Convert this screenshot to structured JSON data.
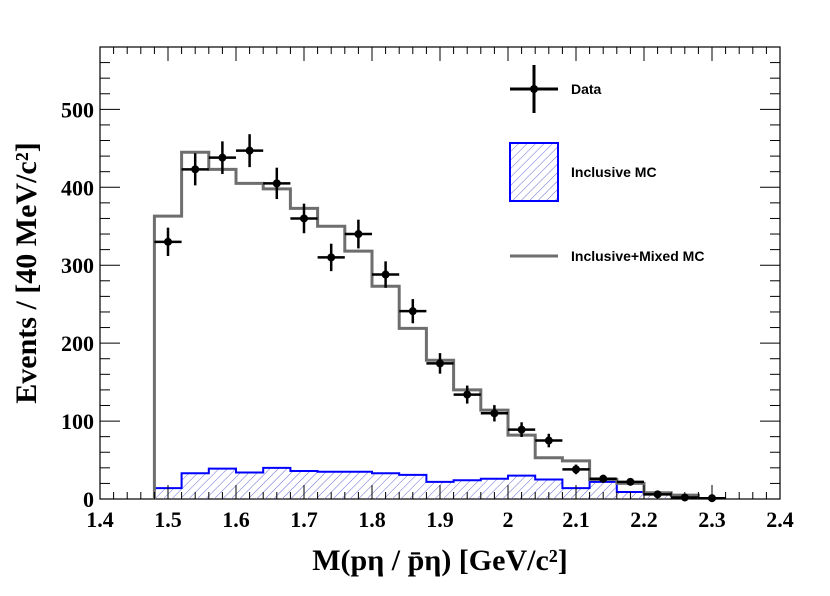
{
  "chart_data": {
    "type": "bar",
    "xlabel": "M(pη /  p̄η) [GeV/c²]",
    "ylabel": "Events / [40 MeV/c²]",
    "xlim": [
      1.4,
      2.4
    ],
    "ylim": [
      0,
      580
    ],
    "x_ticks": [
      1.4,
      1.5,
      1.6,
      1.7,
      1.8,
      1.9,
      2.0,
      2.1,
      2.2,
      2.3,
      2.4
    ],
    "x_tick_labels": [
      "1.4",
      "1.5",
      "1.6",
      "1.7",
      "1.8",
      "1.9",
      "2",
      "2.1",
      "2.2",
      "2.3",
      "2.4"
    ],
    "y_ticks": [
      0,
      100,
      200,
      300,
      400,
      500
    ],
    "y_tick_labels": [
      "0",
      "100",
      "200",
      "300",
      "400",
      "500"
    ],
    "legend_placement": "top-right",
    "series": [
      {
        "name": "Data",
        "kind": "points-with-errors",
        "color": "#000000",
        "x": [
          1.5,
          1.54,
          1.58,
          1.62,
          1.66,
          1.7,
          1.74,
          1.78,
          1.82,
          1.86,
          1.9,
          1.94,
          1.98,
          2.02,
          2.06,
          2.1,
          2.14,
          2.18,
          2.22,
          2.26,
          2.3
        ],
        "values": [
          330,
          423,
          438,
          447,
          405,
          360,
          310,
          340,
          288,
          241,
          174,
          134,
          110,
          89,
          75,
          38,
          26,
          22,
          6,
          2,
          1
        ]
      },
      {
        "name": "Inclusive MC",
        "kind": "hatched-histogram",
        "color": "#0000ff",
        "edges": [
          1.48,
          1.52,
          1.56,
          1.6,
          1.64,
          1.68,
          1.72,
          1.76,
          1.8,
          1.84,
          1.88,
          1.92,
          1.96,
          2.0,
          2.04,
          2.08,
          2.12,
          2.16,
          2.2,
          2.24,
          2.28
        ],
        "values": [
          14,
          33,
          39,
          34,
          40,
          36,
          35,
          35,
          33,
          31,
          22,
          24,
          26,
          30,
          25,
          14,
          22,
          9,
          6,
          4
        ]
      },
      {
        "name": "Inclusive+Mixed MC",
        "kind": "step-histogram",
        "color": "#6e6e6e",
        "edges": [
          1.48,
          1.52,
          1.56,
          1.6,
          1.64,
          1.68,
          1.72,
          1.76,
          1.8,
          1.84,
          1.88,
          1.92,
          1.96,
          2.0,
          2.04,
          2.08,
          2.12,
          2.16,
          2.2,
          2.24,
          2.28
        ],
        "values": [
          363,
          445,
          423,
          405,
          398,
          373,
          350,
          318,
          273,
          219,
          178,
          140,
          114,
          82,
          53,
          49,
          25,
          20,
          8,
          5
        ]
      }
    ]
  }
}
